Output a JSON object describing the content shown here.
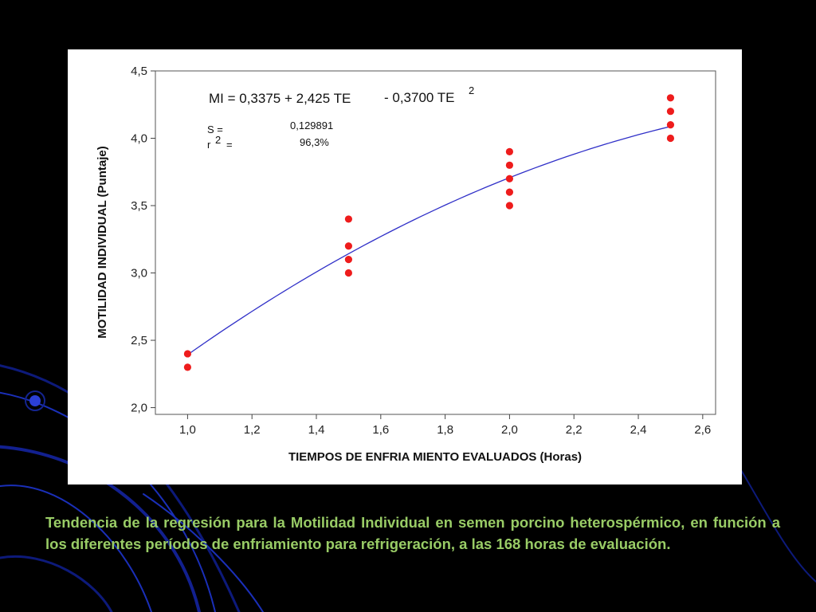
{
  "colors": {
    "background": "#000000",
    "panel": "#ffffff",
    "point": "#ee1c1c",
    "fit_line": "#3030c8",
    "caption": "#99cc66",
    "swirl": "#1a2fb8"
  },
  "chart_data": {
    "type": "scatter",
    "title": "",
    "xlabel": "TIEMPOS DE ENFRIA MIENTO EVALUADOS (Horas)",
    "ylabel": "MOTILIDAD INDIVIDUAL (Puntaje)",
    "xlim": [
      0.9,
      2.64
    ],
    "ylim": [
      1.95,
      4.5
    ],
    "x_ticks": [
      1.0,
      1.2,
      1.4,
      1.6,
      1.8,
      2.0,
      2.2,
      2.4,
      2.6
    ],
    "x_tick_labels": [
      "1,0",
      "1,2",
      "1,4",
      "1,6",
      "1,8",
      "2,0",
      "2,2",
      "2,4",
      "2,6"
    ],
    "y_ticks": [
      2.0,
      2.5,
      3.0,
      3.5,
      4.0,
      4.5
    ],
    "y_tick_labels": [
      "2,0",
      "2,5",
      "3,0",
      "3,5",
      "4,0",
      "4,5"
    ],
    "grid": false,
    "legend": "none",
    "series": [
      {
        "points": [
          [
            1.0,
            2.4
          ],
          [
            1.0,
            2.3
          ],
          [
            1.5,
            3.4
          ],
          [
            1.5,
            3.2
          ],
          [
            1.5,
            3.1
          ],
          [
            1.5,
            3.0
          ],
          [
            2.0,
            3.9
          ],
          [
            2.0,
            3.8
          ],
          [
            2.0,
            3.7
          ],
          [
            2.0,
            3.6
          ],
          [
            2.0,
            3.5
          ],
          [
            2.5,
            4.3
          ],
          [
            2.5,
            4.2
          ],
          [
            2.5,
            4.1
          ],
          [
            2.5,
            4.0
          ]
        ]
      }
    ],
    "fit": {
      "type": "quadratic",
      "intercept": 0.3375,
      "linear": 2.425,
      "quadratic": -0.37,
      "x_range": [
        1.0,
        2.5
      ]
    },
    "annotations": {
      "equation_main": "MI =  0,3375 + 2,425 TE",
      "equation_tail": "- 0,3700 TE",
      "equation_exp": "2",
      "s_label": "S  =",
      "s_value": "0,129891",
      "r2_label": "r",
      "r2_exp": "2",
      "r2_eq": "=",
      "r2_value": "96,3%"
    }
  },
  "caption": "Tendencia de la regresión para la Motilidad Individual en semen porcino heterospérmico, en función a los diferentes períodos de enfriamiento para refrigeración, a las 168 horas de evaluación."
}
